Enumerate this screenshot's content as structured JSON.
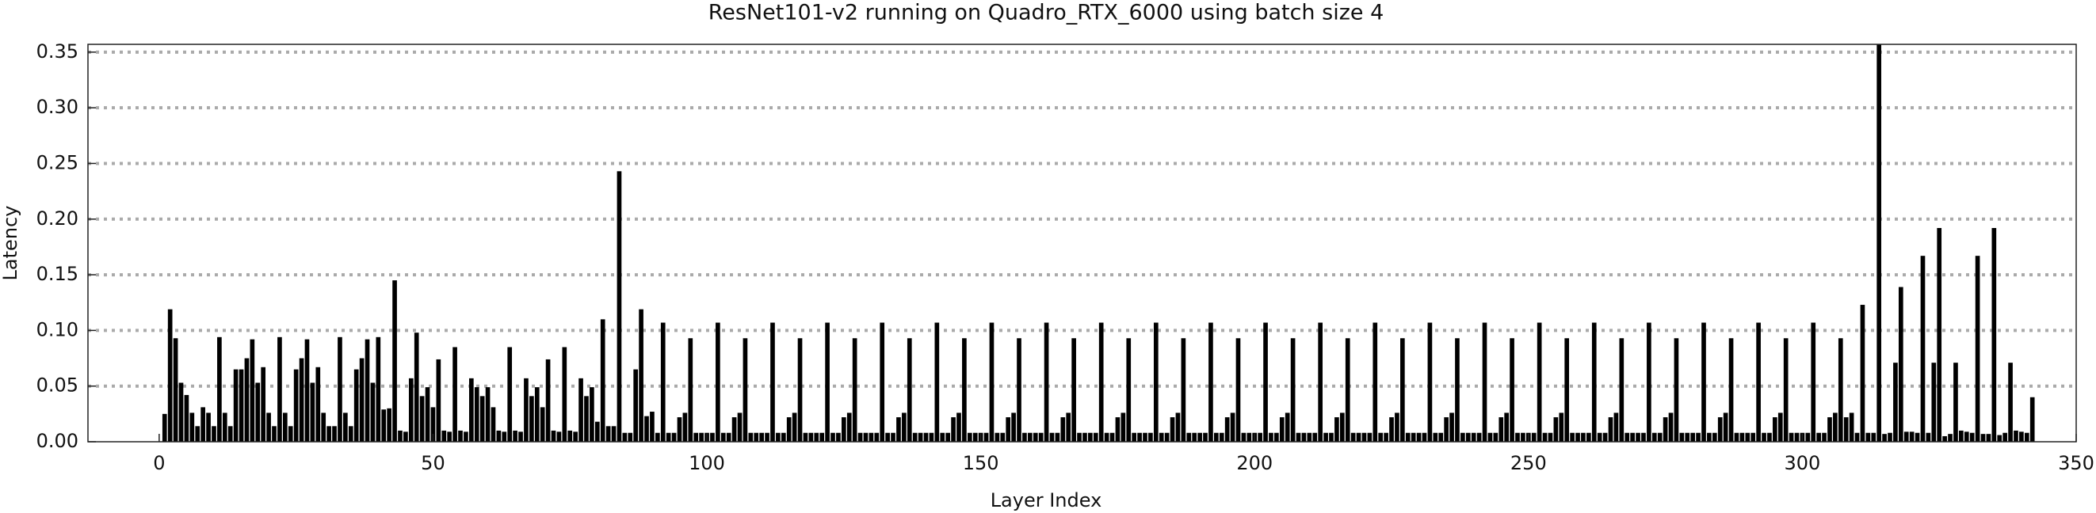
{
  "chart_data": {
    "type": "bar",
    "title": "ResNet101-v2 running on Quadro_RTX_6000 using batch size 4",
    "x_label": "Layer Index",
    "y_label": "Latency",
    "color": "#000000",
    "grid": true,
    "xlim": [
      -13,
      350
    ],
    "ylim": [
      0,
      0.357
    ],
    "xticks": [
      0,
      50,
      100,
      150,
      200,
      250,
      300,
      350
    ],
    "yticks": [
      {
        "value": 0,
        "label": "0.00"
      },
      {
        "value": 0.05,
        "label": "0.05"
      },
      {
        "value": 0.1,
        "label": "0.10"
      },
      {
        "value": 0.15,
        "label": "0.15"
      },
      {
        "value": 0.2,
        "label": "0.20"
      },
      {
        "value": 0.25,
        "label": "0.25"
      },
      {
        "value": 0.3,
        "label": "0.30"
      },
      {
        "value": 0.35,
        "label": "0.35"
      }
    ],
    "x": [
      1,
      2,
      3,
      4,
      5,
      6,
      7,
      8,
      9,
      10,
      11,
      12,
      13,
      14,
      15,
      16,
      17,
      18,
      19,
      20,
      21,
      22,
      23,
      24,
      25,
      26,
      27,
      28,
      29,
      30,
      31,
      32,
      33,
      34,
      35,
      36,
      37,
      38,
      39,
      40,
      41,
      42,
      43,
      44,
      45,
      46,
      47,
      48,
      49,
      50,
      51,
      52,
      53,
      54,
      55,
      56,
      57,
      58,
      59,
      60,
      61,
      62,
      63,
      64,
      65,
      66,
      67,
      68,
      69,
      70,
      71,
      72,
      73,
      74,
      75,
      76,
      77,
      78,
      79,
      80,
      81,
      82,
      83,
      84,
      85,
      86,
      87,
      88,
      89,
      90,
      91,
      92,
      93,
      94,
      95,
      96,
      97,
      98,
      99,
      100,
      101,
      102,
      103,
      104,
      105,
      106,
      107,
      108,
      109,
      110,
      111,
      112,
      113,
      114,
      115,
      116,
      117,
      118,
      119,
      120,
      121,
      122,
      123,
      124,
      125,
      126,
      127,
      128,
      129,
      130,
      131,
      132,
      133,
      134,
      135,
      136,
      137,
      138,
      139,
      140,
      141,
      142,
      143,
      144,
      145,
      146,
      147,
      148,
      149,
      150,
      151,
      152,
      153,
      154,
      155,
      156,
      157,
      158,
      159,
      160,
      161,
      162,
      163,
      164,
      165,
      166,
      167,
      168,
      169,
      170,
      171,
      172,
      173,
      174,
      175,
      176,
      177,
      178,
      179,
      180,
      181,
      182,
      183,
      184,
      185,
      186,
      187,
      188,
      189,
      190,
      191,
      192,
      193,
      194,
      195,
      196,
      197,
      198,
      199,
      200,
      201,
      202,
      203,
      204,
      205,
      206,
      207,
      208,
      209,
      210,
      211,
      212,
      213,
      214,
      215,
      216,
      217,
      218,
      219,
      220,
      221,
      222,
      223,
      224,
      225,
      226,
      227,
      228,
      229,
      230,
      231,
      232,
      233,
      234,
      235,
      236,
      237,
      238,
      239,
      240,
      241,
      242,
      243,
      244,
      245,
      246,
      247,
      248,
      249,
      250,
      251,
      252,
      253,
      254,
      255,
      256,
      257,
      258,
      259,
      260,
      261,
      262,
      263,
      264,
      265,
      266,
      267,
      268,
      269,
      270,
      271,
      272,
      273,
      274,
      275,
      276,
      277,
      278,
      279,
      280,
      281,
      282,
      283,
      284,
      285,
      286,
      287,
      288,
      289,
      290,
      291,
      292,
      293,
      294,
      295,
      296,
      297,
      298,
      299,
      300,
      301,
      302,
      303,
      304,
      305,
      306,
      307,
      308,
      309,
      310,
      311,
      312,
      313,
      314,
      315,
      316,
      317,
      318,
      319,
      320,
      321,
      322,
      323,
      324,
      325,
      326,
      327,
      328,
      329,
      330,
      331,
      332,
      333,
      334,
      335,
      336,
      337,
      338,
      339,
      340,
      341,
      342
    ],
    "values": [
      0.025,
      0.119,
      0.093,
      0.053,
      0.042,
      0.026,
      0.014,
      0.031,
      0.026,
      0.014,
      0.094,
      0.026,
      0.014,
      0.065,
      0.065,
      0.075,
      0.092,
      0.053,
      0.067,
      0.026,
      0.014,
      0.094,
      0.026,
      0.014,
      0.065,
      0.075,
      0.092,
      0.053,
      0.067,
      0.026,
      0.014,
      0.014,
      0.094,
      0.026,
      0.014,
      0.065,
      0.075,
      0.092,
      0.053,
      0.094,
      0.029,
      0.03,
      0.145,
      0.01,
      0.009,
      0.057,
      0.098,
      0.041,
      0.049,
      0.031,
      0.074,
      0.01,
      0.009,
      0.085,
      0.01,
      0.009,
      0.057,
      0.049,
      0.041,
      0.049,
      0.031,
      0.01,
      0.009,
      0.085,
      0.01,
      0.009,
      0.057,
      0.041,
      0.049,
      0.031,
      0.074,
      0.01,
      0.009,
      0.085,
      0.01,
      0.009,
      0.057,
      0.041,
      0.049,
      0.018,
      0.11,
      0.014,
      0.014,
      0.243,
      0.008,
      0.008,
      0.065,
      0.119,
      0.023,
      0.027,
      0.008,
      0.107,
      0.008,
      0.008,
      0.022,
      0.026,
      0.093,
      0.008,
      0.008,
      0.008,
      0.008,
      0.107,
      0.008,
      0.008,
      0.022,
      0.026,
      0.093,
      0.008,
      0.008,
      0.008,
      0.008,
      0.107,
      0.008,
      0.008,
      0.022,
      0.026,
      0.093,
      0.008,
      0.008,
      0.008,
      0.008,
      0.107,
      0.008,
      0.008,
      0.022,
      0.026,
      0.093,
      0.008,
      0.008,
      0.008,
      0.008,
      0.107,
      0.008,
      0.008,
      0.022,
      0.026,
      0.093,
      0.008,
      0.008,
      0.008,
      0.008,
      0.107,
      0.008,
      0.008,
      0.022,
      0.026,
      0.093,
      0.008,
      0.008,
      0.008,
      0.008,
      0.107,
      0.008,
      0.008,
      0.022,
      0.026,
      0.093,
      0.008,
      0.008,
      0.008,
      0.008,
      0.107,
      0.008,
      0.008,
      0.022,
      0.026,
      0.093,
      0.008,
      0.008,
      0.008,
      0.008,
      0.107,
      0.008,
      0.008,
      0.022,
      0.026,
      0.093,
      0.008,
      0.008,
      0.008,
      0.008,
      0.107,
      0.008,
      0.008,
      0.022,
      0.026,
      0.093,
      0.008,
      0.008,
      0.008,
      0.008,
      0.107,
      0.008,
      0.008,
      0.022,
      0.026,
      0.093,
      0.008,
      0.008,
      0.008,
      0.008,
      0.107,
      0.008,
      0.008,
      0.022,
      0.026,
      0.093,
      0.008,
      0.008,
      0.008,
      0.008,
      0.107,
      0.008,
      0.008,
      0.022,
      0.026,
      0.093,
      0.008,
      0.008,
      0.008,
      0.008,
      0.107,
      0.008,
      0.008,
      0.022,
      0.026,
      0.093,
      0.008,
      0.008,
      0.008,
      0.008,
      0.107,
      0.008,
      0.008,
      0.022,
      0.026,
      0.093,
      0.008,
      0.008,
      0.008,
      0.008,
      0.107,
      0.008,
      0.008,
      0.022,
      0.026,
      0.093,
      0.008,
      0.008,
      0.008,
      0.008,
      0.107,
      0.008,
      0.008,
      0.022,
      0.026,
      0.093,
      0.008,
      0.008,
      0.008,
      0.008,
      0.107,
      0.008,
      0.008,
      0.022,
      0.026,
      0.093,
      0.008,
      0.008,
      0.008,
      0.008,
      0.107,
      0.008,
      0.008,
      0.022,
      0.026,
      0.093,
      0.008,
      0.008,
      0.008,
      0.008,
      0.107,
      0.008,
      0.008,
      0.022,
      0.026,
      0.093,
      0.008,
      0.008,
      0.008,
      0.008,
      0.107,
      0.008,
      0.008,
      0.022,
      0.026,
      0.093,
      0.008,
      0.008,
      0.008,
      0.008,
      0.107,
      0.008,
      0.008,
      0.022,
      0.026,
      0.093,
      0.022,
      0.026,
      0.008,
      0.123,
      0.008,
      0.008,
      0.36,
      0.007,
      0.008,
      0.071,
      0.139,
      0.009,
      0.009,
      0.008,
      0.167,
      0.008,
      0.071,
      0.192,
      0.005,
      0.007,
      0.071,
      0.01,
      0.009,
      0.008,
      0.167,
      0.007,
      0.007,
      0.192,
      0.006,
      0.008,
      0.071,
      0.01,
      0.009,
      0.008,
      0.04
    ]
  }
}
